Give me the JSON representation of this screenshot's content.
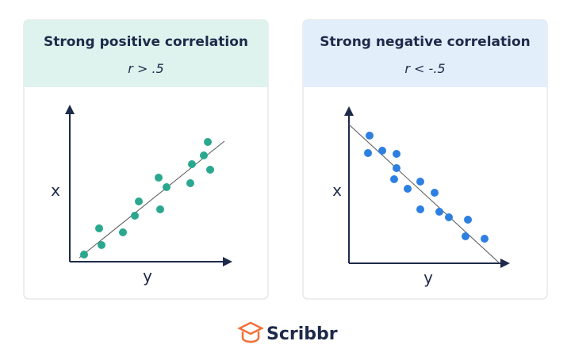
{
  "panels": [
    {
      "title": "Strong positive correlation",
      "subtitle": "r > .5",
      "vertical_axis_label": "x",
      "horizontal_axis_label": "y"
    },
    {
      "title": "Strong negative correlation",
      "subtitle": "r < -.5",
      "vertical_axis_label": "x",
      "horizontal_axis_label": "y"
    }
  ],
  "footer": {
    "brand": "Scribbr"
  }
}
